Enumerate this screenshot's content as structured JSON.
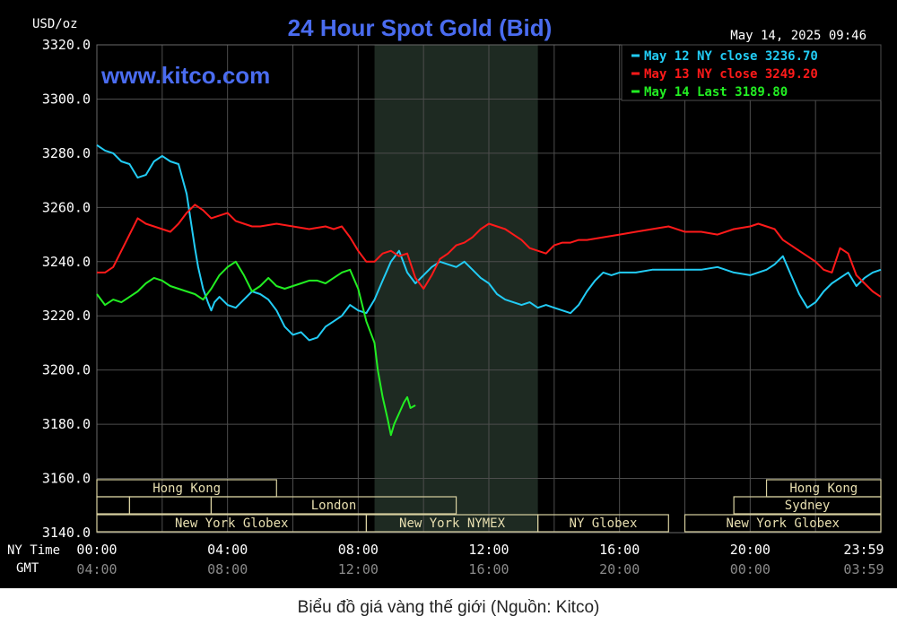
{
  "chart_data": {
    "type": "line",
    "title": "24 Hour Spot Gold (Bid)",
    "ylabel": "USD/oz",
    "watermark": "www.kitco.com",
    "timestamp": "May 14, 2025 09:46",
    "ylim": [
      3140,
      3320
    ],
    "y_ticks": [
      "3320.0",
      "3300.0",
      "3280.0",
      "3260.0",
      "3240.0",
      "3220.0",
      "3200.0",
      "3180.0",
      "3160.0",
      "3140.0"
    ],
    "x_axis": {
      "ny_label": "NY Time",
      "gmt_label": "GMT",
      "ny_ticks": [
        "00:00",
        "04:00",
        "08:00",
        "12:00",
        "16:00",
        "20:00",
        "23:59"
      ],
      "gmt_ticks": [
        "04:00",
        "08:00",
        "12:00",
        "16:00",
        "20:00",
        "00:00",
        "03:59"
      ],
      "xlim": [
        0,
        24
      ]
    },
    "shaded_period": [
      8.5,
      13.5
    ],
    "sessions": [
      {
        "name": "Hong Kong",
        "start": 0,
        "end": 5.5,
        "row": 0
      },
      {
        "name": "",
        "start": 0,
        "end": 1,
        "row": 1
      },
      {
        "name": "",
        "start": 1,
        "end": 3.5,
        "row": 1
      },
      {
        "name": "London",
        "start": 3.5,
        "end": 11,
        "row": 1
      },
      {
        "name": "New York Globex",
        "start": 0,
        "end": 8.25,
        "row": 2
      },
      {
        "name": "New York NYMEX",
        "start": 8.25,
        "end": 13.5,
        "row": 2
      },
      {
        "name": "NY Globex",
        "start": 13.5,
        "end": 17.5,
        "row": 2
      },
      {
        "name": "Hong Kong",
        "start": 20.5,
        "end": 24,
        "row": 0
      },
      {
        "name": "Sydney",
        "start": 19.5,
        "end": 24,
        "row": 1
      },
      {
        "name": "New York Globex",
        "start": 18,
        "end": 24,
        "row": 2
      }
    ],
    "legend": {
      "placement": "top-right",
      "entries": [
        {
          "label": "May 12 NY close 3236.70",
          "color": "#22ccf5"
        },
        {
          "label": "May 13 NY close 3249.20",
          "color": "#ff1a1a"
        },
        {
          "label": "May 14 Last 3189.80",
          "color": "#22ee22"
        }
      ]
    },
    "series": [
      {
        "color": "#22ccf5",
        "x": [
          0,
          0.25,
          0.5,
          0.75,
          1,
          1.25,
          1.5,
          1.75,
          2,
          2.25,
          2.5,
          2.75,
          3,
          3.1,
          3.25,
          3.4,
          3.5,
          3.6,
          3.75,
          4,
          4.25,
          4.5,
          4.75,
          5,
          5.25,
          5.5,
          5.75,
          6,
          6.25,
          6.5,
          6.75,
          7,
          7.25,
          7.5,
          7.75,
          8,
          8.25,
          8.5,
          8.75,
          9,
          9.25,
          9.5,
          9.75,
          10,
          10.25,
          10.5,
          10.75,
          11,
          11.25,
          11.5,
          11.75,
          12,
          12.25,
          12.5,
          12.75,
          13,
          13.25,
          13.5,
          13.75,
          14,
          14.25,
          14.5,
          14.75,
          15,
          15.25,
          15.5,
          15.75,
          16,
          16.5,
          17,
          17.5,
          18,
          18.5,
          19,
          19.5,
          20,
          20.5,
          20.75,
          21,
          21.25,
          21.5,
          21.75,
          22,
          22.25,
          22.5,
          22.75,
          23,
          23.25,
          23.5,
          23.75,
          24
        ],
        "values": [
          3283,
          3281,
          3280,
          3277,
          3276,
          3271,
          3272,
          3277,
          3279,
          3277,
          3276,
          3265,
          3245,
          3238,
          3230,
          3225,
          3222,
          3225,
          3227,
          3224,
          3223,
          3226,
          3229,
          3228,
          3226,
          3222,
          3216,
          3213,
          3214,
          3211,
          3212,
          3216,
          3218,
          3220,
          3224,
          3222,
          3221,
          3226,
          3233,
          3240,
          3244,
          3236,
          3232,
          3235,
          3238,
          3240,
          3239,
          3238,
          3240,
          3237,
          3234,
          3232,
          3228,
          3226,
          3225,
          3224,
          3225,
          3223,
          3224,
          3223,
          3222,
          3221,
          3224,
          3229,
          3233,
          3236,
          3235,
          3236,
          3236,
          3237,
          3237,
          3237,
          3237,
          3238,
          3236,
          3235,
          3237,
          3239,
          3242,
          3235,
          3228,
          3223,
          3225,
          3229,
          3232,
          3234,
          3236,
          3231,
          3234,
          3236,
          3237
        ]
      },
      {
        "color": "#ff1a1a",
        "x": [
          0,
          0.25,
          0.5,
          0.75,
          1,
          1.25,
          1.5,
          1.75,
          2,
          2.25,
          2.5,
          2.75,
          3,
          3.25,
          3.5,
          3.75,
          4,
          4.25,
          4.5,
          4.75,
          5,
          5.5,
          6,
          6.5,
          7,
          7.25,
          7.5,
          7.75,
          8,
          8.25,
          8.5,
          8.75,
          9,
          9.25,
          9.5,
          9.75,
          10,
          10.25,
          10.5,
          10.75,
          11,
          11.25,
          11.5,
          11.75,
          12,
          12.25,
          12.5,
          12.75,
          13,
          13.25,
          13.5,
          13.75,
          14,
          14.25,
          14.5,
          14.75,
          15,
          15.5,
          16,
          16.5,
          17,
          17.5,
          18,
          18.5,
          19,
          19.5,
          20,
          20.25,
          20.5,
          20.75,
          21,
          21.25,
          21.5,
          21.75,
          22,
          22.25,
          22.5,
          22.75,
          23,
          23.25,
          23.5,
          23.75,
          24
        ],
        "values": [
          3236,
          3236,
          3238,
          3244,
          3250,
          3256,
          3254,
          3253,
          3252,
          3251,
          3254,
          3258,
          3261,
          3259,
          3256,
          3257,
          3258,
          3255,
          3254,
          3253,
          3253,
          3254,
          3253,
          3252,
          3253,
          3252,
          3253,
          3249,
          3244,
          3240,
          3240,
          3243,
          3244,
          3242,
          3243,
          3234,
          3230,
          3235,
          3241,
          3243,
          3246,
          3247,
          3249,
          3252,
          3254,
          3253,
          3252,
          3250,
          3248,
          3245,
          3244,
          3243,
          3246,
          3247,
          3247,
          3248,
          3248,
          3249,
          3250,
          3251,
          3252,
          3253,
          3251,
          3251,
          3250,
          3252,
          3253,
          3254,
          3253,
          3252,
          3248,
          3246,
          3244,
          3242,
          3240,
          3237,
          3236,
          3245,
          3243,
          3235,
          3232,
          3229,
          3227
        ]
      },
      {
        "color": "#22ee22",
        "x": [
          0,
          0.25,
          0.5,
          0.75,
          1,
          1.25,
          1.5,
          1.75,
          2,
          2.25,
          2.5,
          2.75,
          3,
          3.25,
          3.5,
          3.75,
          4,
          4.25,
          4.5,
          4.75,
          5,
          5.25,
          5.5,
          5.75,
          6,
          6.25,
          6.5,
          6.75,
          7,
          7.25,
          7.5,
          7.75,
          8,
          8.25,
          8.5,
          8.6,
          8.75,
          8.9,
          9,
          9.1,
          9.25,
          9.4,
          9.5,
          9.6,
          9.75
        ],
        "values": [
          3228,
          3224,
          3226,
          3225,
          3227,
          3229,
          3232,
          3234,
          3233,
          3231,
          3230,
          3229,
          3228,
          3226,
          3230,
          3235,
          3238,
          3240,
          3235,
          3229,
          3231,
          3234,
          3231,
          3230,
          3231,
          3232,
          3233,
          3233,
          3232,
          3234,
          3236,
          3237,
          3230,
          3218,
          3210,
          3200,
          3190,
          3182,
          3176,
          3180,
          3184,
          3188,
          3190,
          3186,
          3187
        ]
      }
    ]
  },
  "caption": "Biểu đồ giá vàng thế giới (Nguồn: Kitco)"
}
